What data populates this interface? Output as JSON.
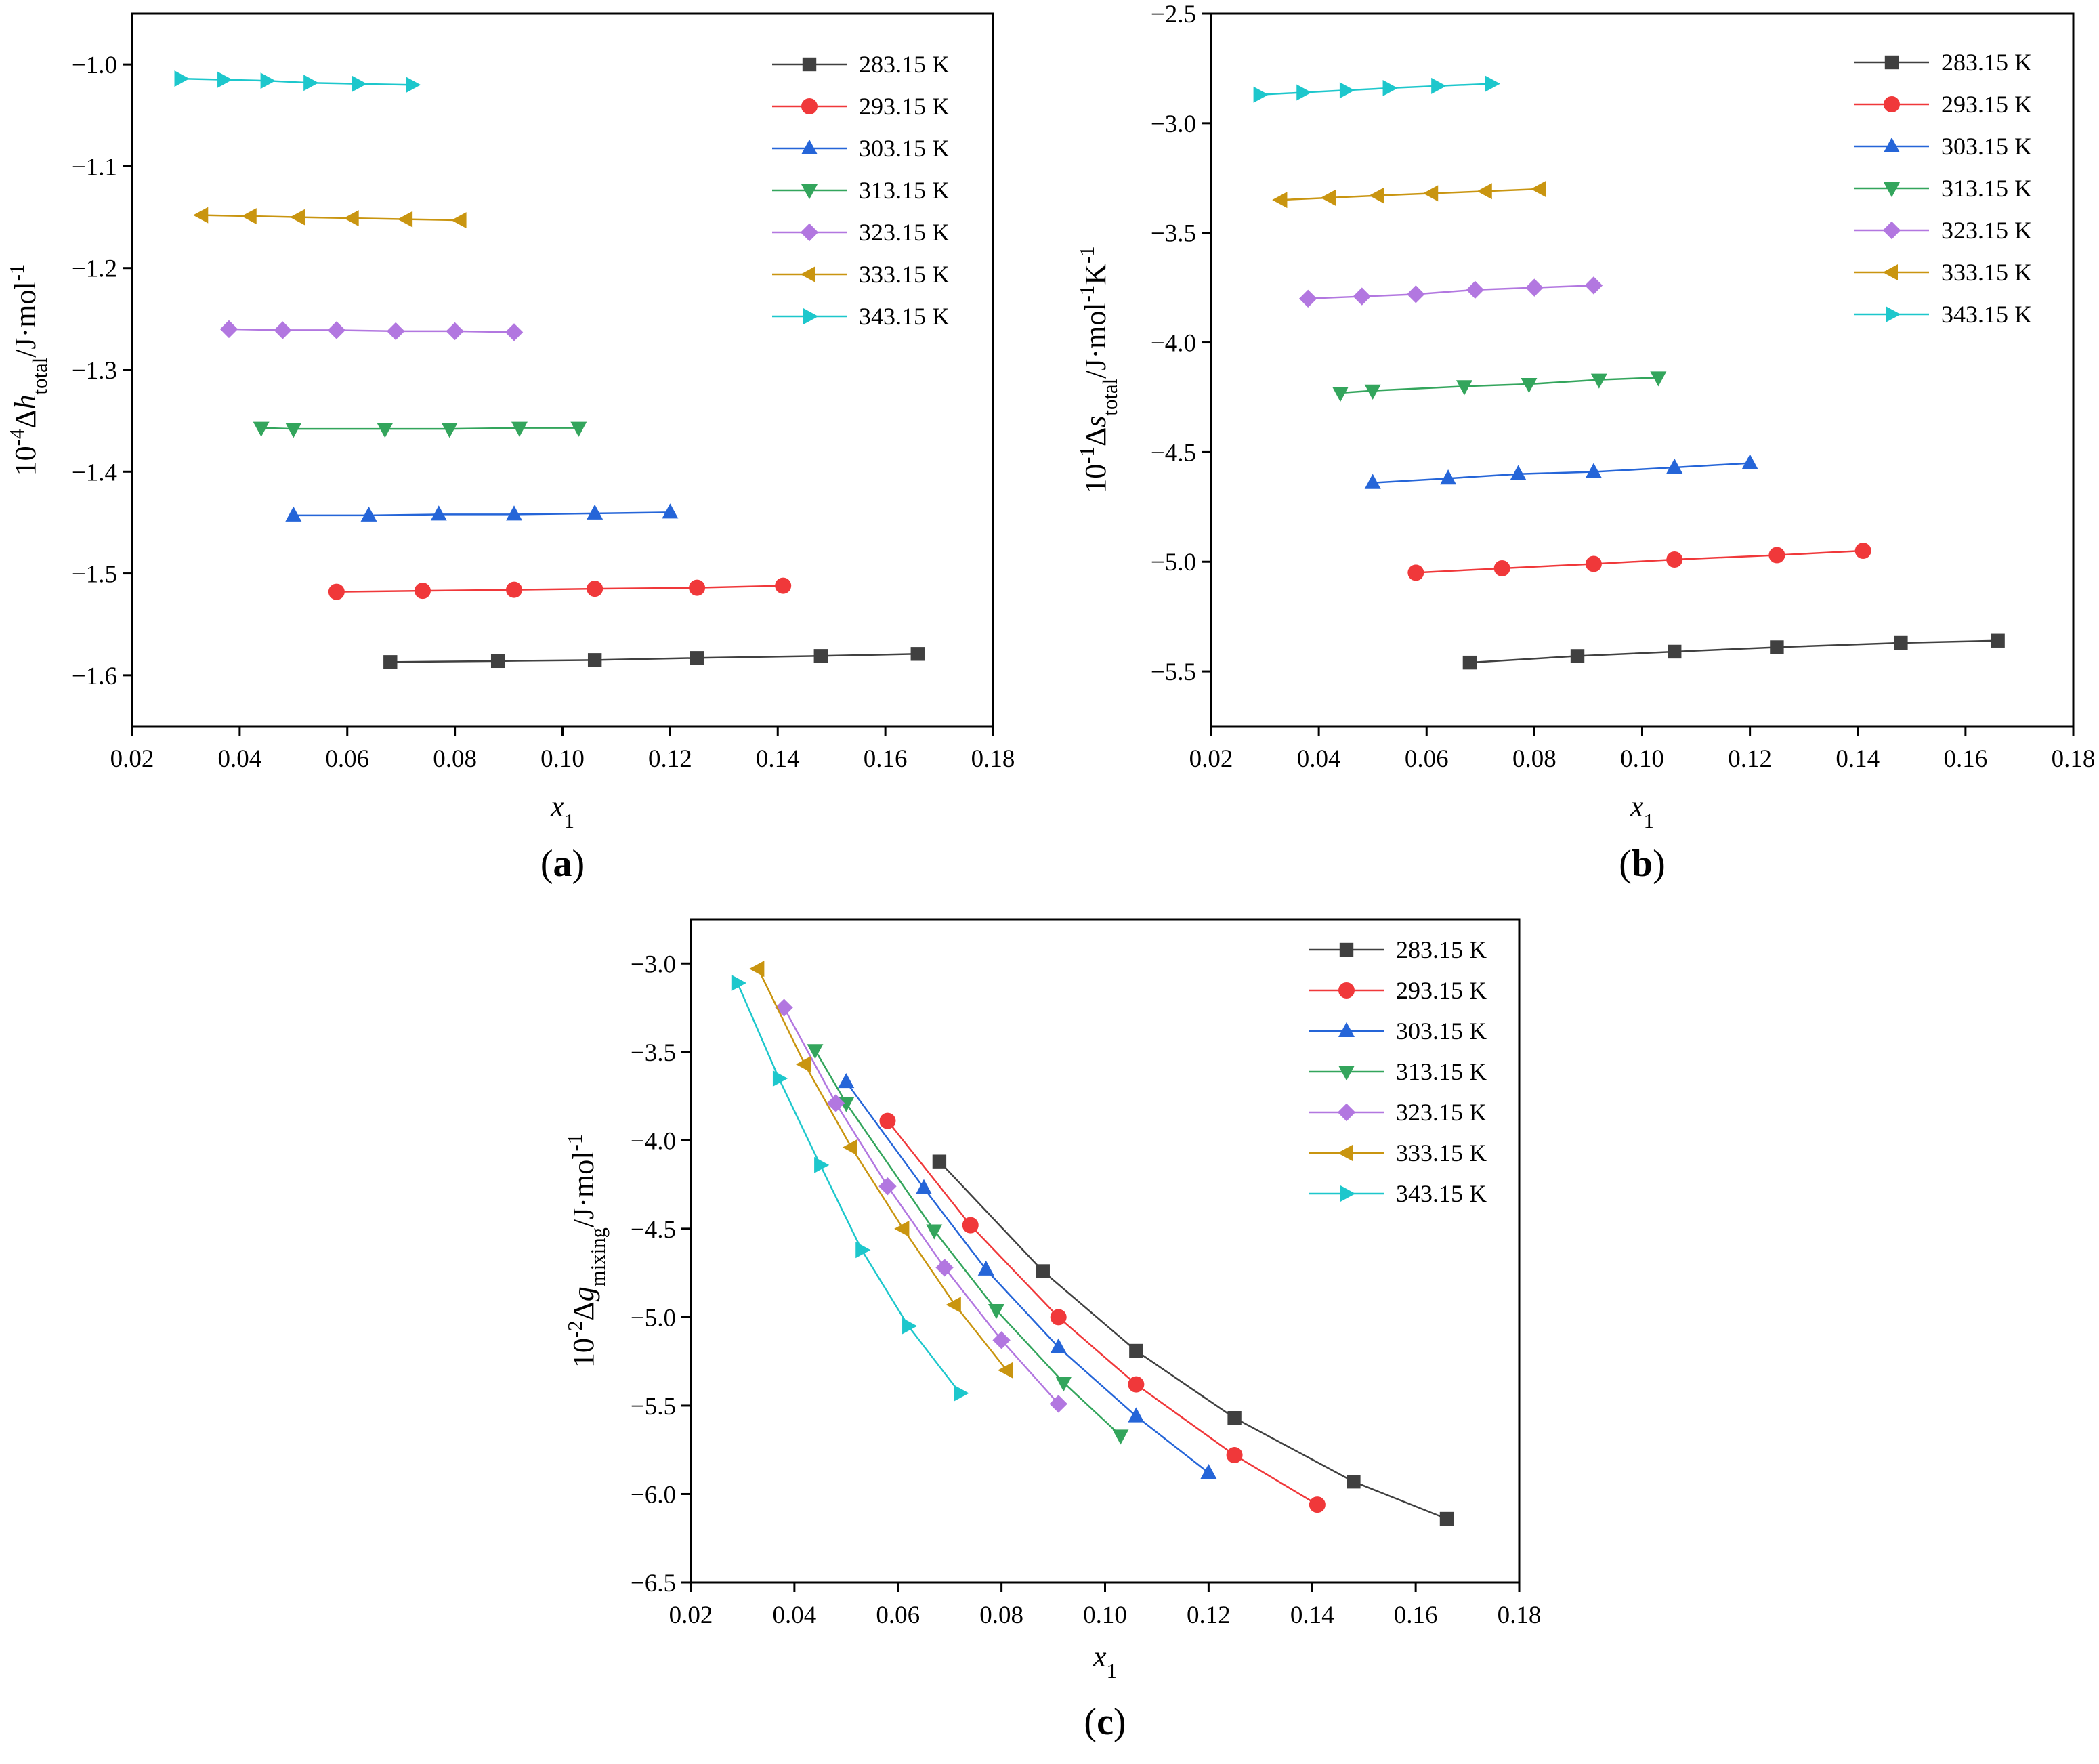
{
  "figure": {
    "panel_labels": [
      "(a)",
      "(b)",
      "(c)"
    ]
  },
  "series_styles": [
    {
      "name": "283.15 K",
      "color": "#404040",
      "marker": "square"
    },
    {
      "name": "293.15 K",
      "color": "#f0383a",
      "marker": "circle"
    },
    {
      "name": "303.15 K",
      "color": "#2565d8",
      "marker": "triangle-up"
    },
    {
      "name": "313.15 K",
      "color": "#33a55c",
      "marker": "triangle-down"
    },
    {
      "name": "323.15 K",
      "color": "#b277e0",
      "marker": "diamond"
    },
    {
      "name": "333.15 K",
      "color": "#c99510",
      "marker": "triangle-left"
    },
    {
      "name": "343.15 K",
      "color": "#1dc7cc",
      "marker": "triangle-right"
    }
  ],
  "chart_data": [
    {
      "panel": "(a)",
      "type": "line",
      "xlabel": "x",
      "xlabel_sub": "1",
      "ylabel_prefix": "10",
      "ylabel_prefix_sup": "-4",
      "ylabel_symbol": "Δh",
      "ylabel_sub": "total",
      "ylabel_units": "/J·mol",
      "ylabel_units_sup": "-1",
      "ylabel_units2": "",
      "ylabel_units2_sup": "",
      "xlim": [
        0.02,
        0.18
      ],
      "ylim": [
        -1.65,
        -0.95
      ],
      "xticks": [
        0.02,
        0.04,
        0.06,
        0.08,
        0.1,
        0.12,
        0.14,
        0.16,
        0.18
      ],
      "yticks": [
        -1.6,
        -1.5,
        -1.4,
        -1.3,
        -1.2,
        -1.1,
        -1.0
      ],
      "x_tick_labels": [
        "0.02",
        "0.04",
        "0.06",
        "0.08",
        "0.10",
        "0.12",
        "0.14",
        "0.16",
        "0.18"
      ],
      "y_tick_labels": [
        "−1.6",
        "−1.5",
        "−1.4",
        "−1.3",
        "−1.2",
        "−1.1",
        "−1.0"
      ],
      "legend_position": "top-right",
      "series": [
        {
          "name": "283.15 K",
          "x": [
            0.068,
            0.088,
            0.106,
            0.125,
            0.148,
            0.166
          ],
          "y": [
            -1.587,
            -1.586,
            -1.585,
            -1.583,
            -1.581,
            -1.579
          ]
        },
        {
          "name": "293.15 K",
          "x": [
            0.058,
            0.074,
            0.091,
            0.106,
            0.125,
            0.141
          ],
          "y": [
            -1.518,
            -1.517,
            -1.516,
            -1.515,
            -1.514,
            -1.512
          ]
        },
        {
          "name": "303.15 K",
          "x": [
            0.05,
            0.064,
            0.077,
            0.091,
            0.106,
            0.12
          ],
          "y": [
            -1.443,
            -1.443,
            -1.442,
            -1.442,
            -1.441,
            -1.44
          ]
        },
        {
          "name": "313.15 K",
          "x": [
            0.044,
            0.05,
            0.067,
            0.079,
            0.092,
            0.103
          ],
          "y": [
            -1.357,
            -1.358,
            -1.358,
            -1.358,
            -1.357,
            -1.357
          ]
        },
        {
          "name": "323.15 K",
          "x": [
            0.038,
            0.048,
            0.058,
            0.069,
            0.08,
            0.091
          ],
          "y": [
            -1.26,
            -1.261,
            -1.261,
            -1.262,
            -1.262,
            -1.263
          ]
        },
        {
          "name": "333.15 K",
          "x": [
            0.033,
            0.042,
            0.051,
            0.061,
            0.071,
            0.081
          ],
          "y": [
            -1.148,
            -1.149,
            -1.15,
            -1.151,
            -1.152,
            -1.153
          ]
        },
        {
          "name": "343.15 K",
          "x": [
            0.029,
            0.037,
            0.045,
            0.053,
            0.062,
            0.072
          ],
          "y": [
            -1.014,
            -1.015,
            -1.016,
            -1.018,
            -1.019,
            -1.02
          ]
        }
      ]
    },
    {
      "panel": "(b)",
      "type": "line",
      "xlabel": "x",
      "xlabel_sub": "1",
      "ylabel_prefix": "10",
      "ylabel_prefix_sup": "-1",
      "ylabel_symbol": "Δs",
      "ylabel_sub": "total",
      "ylabel_units": "/J·mol",
      "ylabel_units_sup": "-1",
      "ylabel_units2": "K",
      "ylabel_units2_sup": "-1",
      "xlim": [
        0.02,
        0.18
      ],
      "ylim": [
        -5.75,
        -2.5
      ],
      "xticks": [
        0.02,
        0.04,
        0.06,
        0.08,
        0.1,
        0.12,
        0.14,
        0.16,
        0.18
      ],
      "yticks": [
        -5.5,
        -5.0,
        -4.5,
        -4.0,
        -3.5,
        -3.0,
        -2.5
      ],
      "x_tick_labels": [
        "0.02",
        "0.04",
        "0.06",
        "0.08",
        "0.10",
        "0.12",
        "0.14",
        "0.16",
        "0.18"
      ],
      "y_tick_labels": [
        "−5.5",
        "−5.0",
        "−4.5",
        "−4.0",
        "−3.5",
        "−3.0",
        "−2.5"
      ],
      "legend_position": "top-right",
      "series": [
        {
          "name": "283.15 K",
          "x": [
            0.068,
            0.088,
            0.106,
            0.125,
            0.148,
            0.166
          ],
          "y": [
            -5.46,
            -5.43,
            -5.41,
            -5.39,
            -5.37,
            -5.36
          ]
        },
        {
          "name": "293.15 K",
          "x": [
            0.058,
            0.074,
            0.091,
            0.106,
            0.125,
            0.141
          ],
          "y": [
            -5.05,
            -5.03,
            -5.01,
            -4.99,
            -4.97,
            -4.95
          ]
        },
        {
          "name": "303.15 K",
          "x": [
            0.05,
            0.064,
            0.077,
            0.091,
            0.106,
            0.12
          ],
          "y": [
            -4.64,
            -4.62,
            -4.6,
            -4.59,
            -4.57,
            -4.55
          ]
        },
        {
          "name": "313.15 K",
          "x": [
            0.044,
            0.05,
            0.067,
            0.079,
            0.092,
            0.103
          ],
          "y": [
            -4.23,
            -4.22,
            -4.2,
            -4.19,
            -4.17,
            -4.16
          ]
        },
        {
          "name": "323.15 K",
          "x": [
            0.038,
            0.048,
            0.058,
            0.069,
            0.08,
            0.091
          ],
          "y": [
            -3.8,
            -3.79,
            -3.78,
            -3.76,
            -3.75,
            -3.74
          ]
        },
        {
          "name": "333.15 K",
          "x": [
            0.033,
            0.042,
            0.051,
            0.061,
            0.071,
            0.081
          ],
          "y": [
            -3.35,
            -3.34,
            -3.33,
            -3.32,
            -3.31,
            -3.3
          ]
        },
        {
          "name": "343.15 K",
          "x": [
            0.029,
            0.037,
            0.045,
            0.053,
            0.062,
            0.072
          ],
          "y": [
            -2.87,
            -2.86,
            -2.85,
            -2.84,
            -2.83,
            -2.82
          ]
        }
      ]
    },
    {
      "panel": "(c)",
      "type": "line",
      "xlabel": "x",
      "xlabel_sub": "1",
      "ylabel_prefix": "10",
      "ylabel_prefix_sup": "-2",
      "ylabel_symbol": "Δg",
      "ylabel_sub": "mixing",
      "ylabel_units": "/J·mol",
      "ylabel_units_sup": "-1",
      "ylabel_units2": "",
      "ylabel_units2_sup": "",
      "xlim": [
        0.02,
        0.18
      ],
      "ylim": [
        -6.5,
        -2.75
      ],
      "xticks": [
        0.02,
        0.04,
        0.06,
        0.08,
        0.1,
        0.12,
        0.14,
        0.16,
        0.18
      ],
      "yticks": [
        -6.5,
        -6.0,
        -5.5,
        -5.0,
        -4.5,
        -4.0,
        -3.5,
        -3.0
      ],
      "x_tick_labels": [
        "0.02",
        "0.04",
        "0.06",
        "0.08",
        "0.10",
        "0.12",
        "0.14",
        "0.16",
        "0.18"
      ],
      "y_tick_labels": [
        "−6.5",
        "−6.0",
        "−5.5",
        "−5.0",
        "−4.5",
        "−4.0",
        "−3.5",
        "−3.0"
      ],
      "legend_position": "top-right",
      "series": [
        {
          "name": "283.15 K",
          "x": [
            0.068,
            0.088,
            0.106,
            0.125,
            0.148,
            0.166
          ],
          "y": [
            -4.12,
            -4.74,
            -5.19,
            -5.57,
            -5.93,
            -6.14
          ]
        },
        {
          "name": "293.15 K",
          "x": [
            0.058,
            0.074,
            0.091,
            0.106,
            0.125,
            0.141
          ],
          "y": [
            -3.89,
            -4.48,
            -5.0,
            -5.38,
            -5.78,
            -6.06
          ]
        },
        {
          "name": "303.15 K",
          "x": [
            0.05,
            0.065,
            0.077,
            0.091,
            0.106,
            0.12
          ],
          "y": [
            -3.67,
            -4.27,
            -4.73,
            -5.17,
            -5.56,
            -5.88
          ]
        },
        {
          "name": "313.15 K",
          "x": [
            0.044,
            0.05,
            0.067,
            0.079,
            0.092,
            0.103
          ],
          "y": [
            -3.49,
            -3.79,
            -4.51,
            -4.96,
            -5.37,
            -5.67
          ]
        },
        {
          "name": "323.15 K",
          "x": [
            0.038,
            0.048,
            0.058,
            0.069,
            0.08,
            0.091
          ],
          "y": [
            -3.25,
            -3.79,
            -4.26,
            -4.72,
            -5.13,
            -5.49
          ]
        },
        {
          "name": "333.15 K",
          "x": [
            0.033,
            0.042,
            0.051,
            0.061,
            0.071,
            0.081
          ],
          "y": [
            -3.03,
            -3.57,
            -4.04,
            -4.5,
            -4.93,
            -5.3
          ]
        },
        {
          "name": "343.15 K",
          "x": [
            0.029,
            0.037,
            0.045,
            0.053,
            0.062,
            0.072
          ],
          "y": [
            -3.11,
            -3.65,
            -4.14,
            -4.62,
            -5.05,
            -5.43
          ]
        }
      ]
    }
  ]
}
